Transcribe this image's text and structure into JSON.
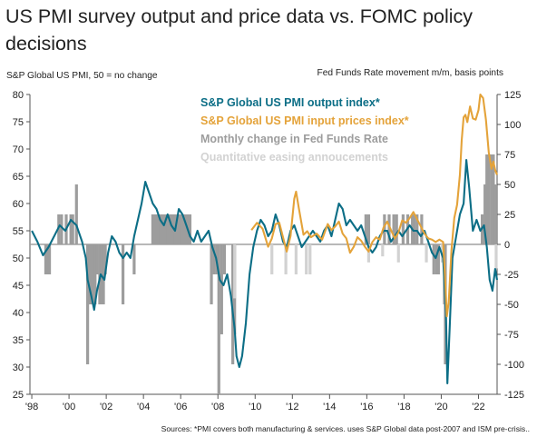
{
  "title": "US PMI survey output and price data vs. FOMC policy decisions",
  "left_axis_label": "S&P Global US PMI, 50 = no change",
  "right_axis_label": "Fed Funds Rate movement m/m, basis points",
  "source": "Sources: *PMI covers both manufacturing & services. uses S&P Global data post-2007 and ISM pre-crisis..",
  "colors": {
    "output": "#0c6e86",
    "input": "#e4a33a",
    "fed": "#9d9d9d",
    "qe": "#d2d2d2"
  },
  "chart_data": {
    "type": "line+bar",
    "xlabel": "",
    "x_ticks": [
      "'98",
      "'00",
      "'02",
      "'04",
      "'06",
      "'08",
      "'10",
      "'12",
      "'14",
      "'16",
      "'18",
      "'20",
      "'22"
    ],
    "y_left": {
      "label": "S&P Global US PMI, 50 = no change",
      "lim": [
        25,
        80
      ],
      "ticks": [
        80,
        75,
        70,
        65,
        60,
        55,
        50,
        45,
        40,
        35,
        30,
        25
      ]
    },
    "y_right": {
      "label": "Fed Funds Rate movement m/m, basis points",
      "lim": [
        -125,
        125
      ],
      "ticks": [
        125,
        100,
        75,
        50,
        25,
        0,
        -25,
        -50,
        -75,
        -100,
        -125
      ]
    },
    "legend": [
      {
        "label": "S&P Global US PMI output index*",
        "color": "#0c6e86"
      },
      {
        "label": "S&P Global US PMI input prices index*",
        "color": "#e4a33a"
      },
      {
        "label": "Monthly change in Fed Funds Rate",
        "color": "#9d9d9d"
      },
      {
        "label": "Quantitative easing annoucements",
        "color": "#d2d2d2"
      }
    ],
    "series": [
      {
        "name": "S&P Global US PMI output index*",
        "axis": "left",
        "points": [
          [
            1998.0,
            55
          ],
          [
            1998.3,
            53
          ],
          [
            1998.6,
            50.5
          ],
          [
            1998.9,
            52
          ],
          [
            1999.2,
            54
          ],
          [
            1999.5,
            56
          ],
          [
            1999.8,
            55
          ],
          [
            2000.1,
            57
          ],
          [
            2000.4,
            56
          ],
          [
            2000.7,
            53
          ],
          [
            2000.9,
            50
          ],
          [
            2001.0,
            46
          ],
          [
            2001.2,
            43
          ],
          [
            2001.35,
            40.5
          ],
          [
            2001.5,
            44
          ],
          [
            2001.7,
            47
          ],
          [
            2001.9,
            46
          ],
          [
            2002.1,
            51
          ],
          [
            2002.3,
            54
          ],
          [
            2002.5,
            53
          ],
          [
            2002.7,
            51
          ],
          [
            2002.9,
            50
          ],
          [
            2003.1,
            51
          ],
          [
            2003.3,
            50
          ],
          [
            2003.5,
            54
          ],
          [
            2003.7,
            57
          ],
          [
            2003.9,
            60
          ],
          [
            2004.1,
            64
          ],
          [
            2004.3,
            62
          ],
          [
            2004.5,
            60
          ],
          [
            2004.7,
            59
          ],
          [
            2004.9,
            57
          ],
          [
            2005.1,
            56
          ],
          [
            2005.3,
            58
          ],
          [
            2005.5,
            56
          ],
          [
            2005.7,
            55
          ],
          [
            2005.9,
            59
          ],
          [
            2006.1,
            58
          ],
          [
            2006.3,
            56
          ],
          [
            2006.5,
            54
          ],
          [
            2006.7,
            53
          ],
          [
            2006.9,
            55
          ],
          [
            2007.1,
            53
          ],
          [
            2007.3,
            54
          ],
          [
            2007.5,
            55
          ],
          [
            2007.7,
            52
          ],
          [
            2007.9,
            50
          ],
          [
            2008.1,
            46
          ],
          [
            2008.3,
            45
          ],
          [
            2008.5,
            47
          ],
          [
            2008.7,
            43
          ],
          [
            2008.8,
            40
          ],
          [
            2008.9,
            37
          ],
          [
            2009.0,
            32
          ],
          [
            2009.15,
            30
          ],
          [
            2009.3,
            32
          ],
          [
            2009.5,
            38
          ],
          [
            2009.7,
            47
          ],
          [
            2009.9,
            52
          ],
          [
            2010.1,
            55
          ],
          [
            2010.3,
            57
          ],
          [
            2010.5,
            56
          ],
          [
            2010.7,
            54
          ],
          [
            2010.9,
            55
          ],
          [
            2011.1,
            58
          ],
          [
            2011.3,
            56
          ],
          [
            2011.5,
            53
          ],
          [
            2011.7,
            52
          ],
          [
            2011.9,
            55
          ],
          [
            2012.1,
            56
          ],
          [
            2012.3,
            54
          ],
          [
            2012.5,
            52
          ],
          [
            2012.7,
            53
          ],
          [
            2012.9,
            54
          ],
          [
            2013.1,
            55
          ],
          [
            2013.3,
            54
          ],
          [
            2013.5,
            53
          ],
          [
            2013.7,
            55
          ],
          [
            2013.9,
            56
          ],
          [
            2014.1,
            54
          ],
          [
            2014.3,
            57
          ],
          [
            2014.5,
            60
          ],
          [
            2014.7,
            59
          ],
          [
            2014.9,
            56
          ],
          [
            2015.1,
            57
          ],
          [
            2015.3,
            56
          ],
          [
            2015.5,
            55
          ],
          [
            2015.7,
            56
          ],
          [
            2015.9,
            54
          ],
          [
            2016.1,
            52
          ],
          [
            2016.3,
            51
          ],
          [
            2016.5,
            52
          ],
          [
            2016.7,
            54
          ],
          [
            2016.9,
            55
          ],
          [
            2017.1,
            55
          ],
          [
            2017.3,
            53
          ],
          [
            2017.5,
            54
          ],
          [
            2017.7,
            55
          ],
          [
            2017.9,
            54
          ],
          [
            2018.1,
            55
          ],
          [
            2018.3,
            56
          ],
          [
            2018.5,
            55
          ],
          [
            2018.7,
            55
          ],
          [
            2018.9,
            54
          ],
          [
            2019.1,
            55
          ],
          [
            2019.3,
            53
          ],
          [
            2019.5,
            51
          ],
          [
            2019.7,
            50
          ],
          [
            2019.9,
            52
          ],
          [
            2020.1,
            50
          ],
          [
            2020.25,
            40
          ],
          [
            2020.33,
            27
          ],
          [
            2020.45,
            37
          ],
          [
            2020.6,
            50
          ],
          [
            2020.8,
            54
          ],
          [
            2021.0,
            58
          ],
          [
            2021.2,
            60
          ],
          [
            2021.35,
            68
          ],
          [
            2021.5,
            63
          ],
          [
            2021.7,
            55
          ],
          [
            2021.9,
            57
          ],
          [
            2022.1,
            55
          ],
          [
            2022.3,
            56
          ],
          [
            2022.45,
            52
          ],
          [
            2022.6,
            46
          ],
          [
            2022.75,
            44
          ],
          [
            2022.9,
            48
          ],
          [
            2023.0,
            46
          ]
        ]
      },
      {
        "name": "S&P Global US PMI input prices index*",
        "axis": "right",
        "points": [
          [
            2009.8,
            12
          ],
          [
            2010.1,
            18
          ],
          [
            2010.4,
            13
          ],
          [
            2010.7,
            -2
          ],
          [
            2010.9,
            5
          ],
          [
            2011.1,
            17
          ],
          [
            2011.3,
            18
          ],
          [
            2011.5,
            6
          ],
          [
            2011.7,
            -6
          ],
          [
            2011.9,
            7
          ],
          [
            2012.1,
            38
          ],
          [
            2012.2,
            44
          ],
          [
            2012.35,
            30
          ],
          [
            2012.6,
            8
          ],
          [
            2012.8,
            11
          ],
          [
            2013.0,
            6
          ],
          [
            2013.3,
            9
          ],
          [
            2013.6,
            4
          ],
          [
            2013.9,
            17
          ],
          [
            2014.1,
            12
          ],
          [
            2014.3,
            15
          ],
          [
            2014.5,
            19
          ],
          [
            2014.7,
            9
          ],
          [
            2014.9,
            5
          ],
          [
            2015.1,
            -7
          ],
          [
            2015.3,
            -2
          ],
          [
            2015.5,
            6
          ],
          [
            2015.7,
            3
          ],
          [
            2015.9,
            -2
          ],
          [
            2016.1,
            -6
          ],
          [
            2016.3,
            2
          ],
          [
            2016.5,
            6
          ],
          [
            2016.7,
            4
          ],
          [
            2016.9,
            14
          ],
          [
            2017.1,
            19
          ],
          [
            2017.3,
            12
          ],
          [
            2017.5,
            5
          ],
          [
            2017.7,
            10
          ],
          [
            2017.9,
            20
          ],
          [
            2018.1,
            18
          ],
          [
            2018.3,
            22
          ],
          [
            2018.5,
            27
          ],
          [
            2018.7,
            21
          ],
          [
            2018.9,
            15
          ],
          [
            2019.1,
            9
          ],
          [
            2019.3,
            5
          ],
          [
            2019.5,
            4
          ],
          [
            2019.7,
            2
          ],
          [
            2019.9,
            4
          ],
          [
            2020.1,
            2
          ],
          [
            2020.2,
            -25
          ],
          [
            2020.3,
            -60
          ],
          [
            2020.4,
            -48
          ],
          [
            2020.55,
            -5
          ],
          [
            2020.7,
            22
          ],
          [
            2020.85,
            33
          ],
          [
            2021.0,
            58
          ],
          [
            2021.1,
            87
          ],
          [
            2021.2,
            106
          ],
          [
            2021.3,
            108
          ],
          [
            2021.4,
            102
          ],
          [
            2021.55,
            115
          ],
          [
            2021.7,
            105
          ],
          [
            2021.85,
            104
          ],
          [
            2022.0,
            112
          ],
          [
            2022.1,
            125
          ],
          [
            2022.25,
            122
          ],
          [
            2022.4,
            104
          ],
          [
            2022.55,
            77
          ],
          [
            2022.7,
            63
          ],
          [
            2022.8,
            69
          ],
          [
            2022.9,
            62
          ],
          [
            2023.0,
            58
          ]
        ]
      }
    ],
    "fed_changes": [
      [
        1998.75,
        -25
      ],
      [
        1998.85,
        -25
      ],
      [
        1998.95,
        -25
      ],
      [
        1999.45,
        25
      ],
      [
        1999.6,
        25
      ],
      [
        1999.85,
        25
      ],
      [
        2000.1,
        25
      ],
      [
        2000.2,
        25
      ],
      [
        2000.4,
        50
      ],
      [
        2001.0,
        -100
      ],
      [
        2001.1,
        -50
      ],
      [
        2001.2,
        -50
      ],
      [
        2001.3,
        -50
      ],
      [
        2001.4,
        -50
      ],
      [
        2001.5,
        -25
      ],
      [
        2001.65,
        -50
      ],
      [
        2001.75,
        -50
      ],
      [
        2001.85,
        -50
      ],
      [
        2001.95,
        -25
      ],
      [
        2002.9,
        -50
      ],
      [
        2003.5,
        -25
      ],
      [
        2004.5,
        25
      ],
      [
        2004.6,
        25
      ],
      [
        2004.7,
        25
      ],
      [
        2004.8,
        25
      ],
      [
        2004.9,
        25
      ],
      [
        2005.0,
        25
      ],
      [
        2005.1,
        25
      ],
      [
        2005.2,
        25
      ],
      [
        2005.3,
        25
      ],
      [
        2005.4,
        25
      ],
      [
        2005.5,
        25
      ],
      [
        2005.6,
        25
      ],
      [
        2005.7,
        25
      ],
      [
        2005.8,
        25
      ],
      [
        2005.9,
        25
      ],
      [
        2006.0,
        25
      ],
      [
        2006.1,
        25
      ],
      [
        2006.2,
        25
      ],
      [
        2006.3,
        25
      ],
      [
        2006.4,
        25
      ],
      [
        2006.5,
        25
      ],
      [
        2007.65,
        -50
      ],
      [
        2007.8,
        -25
      ],
      [
        2007.95,
        -25
      ],
      [
        2008.05,
        -125
      ],
      [
        2008.2,
        -75
      ],
      [
        2008.35,
        -25
      ],
      [
        2008.8,
        -100
      ],
      [
        2008.9,
        -75
      ]
    ],
    "qe_announcements": [
      [
        2008.9,
        -45
      ],
      [
        2010.9,
        -25
      ],
      [
        2011.65,
        -25
      ],
      [
        2012.2,
        -25
      ],
      [
        2012.75,
        -25
      ],
      [
        2012.95,
        -25
      ],
      [
        2016.1,
        -15
      ],
      [
        2016.85,
        -10
      ],
      [
        2017.7,
        -15
      ],
      [
        2019.2,
        -15
      ],
      [
        2019.75,
        -15
      ],
      [
        2020.05,
        -15
      ],
      [
        2020.2,
        -25
      ],
      [
        2022.95,
        -20
      ]
    ],
    "qe_label_values_note": ""
  }
}
